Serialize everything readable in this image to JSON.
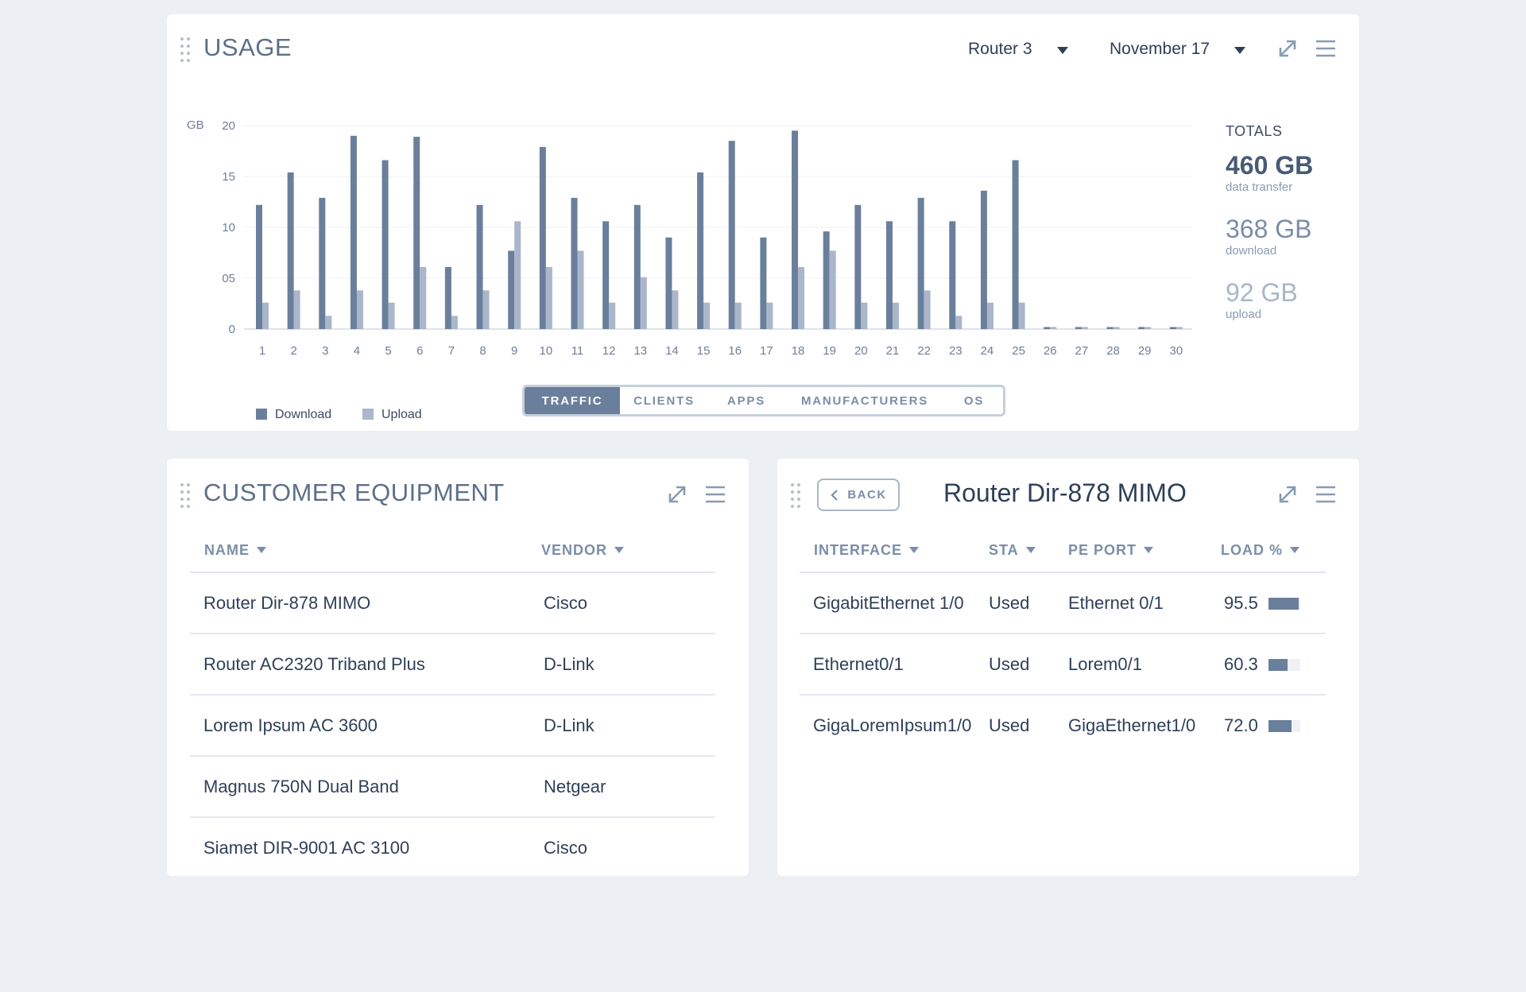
{
  "usage": {
    "title": "USAGE",
    "router_select": "Router 3",
    "date_select": "November 17",
    "unit_label": "GB",
    "totals": {
      "label": "TOTALS",
      "total_value": "460 GB",
      "total_caption": "data transfer",
      "download_value": "368 GB",
      "download_caption": "download",
      "upload_value": "92 GB",
      "upload_caption": "upload"
    },
    "legend": {
      "download": "Download",
      "upload": "Upload"
    },
    "tabs": [
      {
        "label": "TRAFFIC",
        "active": true
      },
      {
        "label": "CLIENTS",
        "active": false
      },
      {
        "label": "APPS",
        "active": false
      },
      {
        "label": "MANUFACTURERS",
        "active": false
      },
      {
        "label": "OS",
        "active": false
      }
    ]
  },
  "chart_data": {
    "type": "bar",
    "ylabel": "GB",
    "ylim": [
      0,
      20
    ],
    "yticks": [
      "0",
      "05",
      "10",
      "15",
      "20"
    ],
    "ytick_values": [
      0,
      5,
      10,
      15,
      20
    ],
    "grid": true,
    "legend_position": "bottom-left",
    "categories": [
      "1",
      "2",
      "3",
      "4",
      "5",
      "6",
      "7",
      "8",
      "9",
      "10",
      "11",
      "12",
      "13",
      "14",
      "15",
      "16",
      "17",
      "18",
      "19",
      "20",
      "21",
      "22",
      "23",
      "24",
      "25",
      "26",
      "27",
      "28",
      "29",
      "30"
    ],
    "series": [
      {
        "name": "Download",
        "color": "#6a7f9b",
        "values": [
          12.2,
          15.4,
          12.9,
          19.0,
          16.6,
          18.9,
          6.1,
          12.2,
          7.7,
          17.9,
          12.9,
          10.6,
          12.2,
          9.0,
          15.4,
          18.5,
          9.0,
          19.5,
          9.6,
          12.2,
          10.6,
          12.9,
          10.6,
          13.6,
          16.6,
          0.2,
          0.2,
          0.2,
          0.2,
          0.2
        ]
      },
      {
        "name": "Upload",
        "color": "#a9b6cb",
        "values": [
          2.6,
          3.8,
          1.3,
          3.8,
          2.6,
          6.1,
          1.3,
          3.8,
          10.6,
          6.1,
          7.7,
          2.6,
          5.1,
          3.8,
          2.6,
          2.6,
          2.6,
          6.1,
          7.7,
          2.6,
          2.6,
          3.8,
          1.3,
          2.6,
          2.6,
          0.2,
          0.2,
          0.2,
          0.2,
          0.2
        ]
      }
    ]
  },
  "equipment": {
    "title": "CUSTOMER EQUIPMENT",
    "columns": {
      "name": "NAME",
      "vendor": "VENDOR"
    },
    "rows": [
      {
        "name": "Router Dir-878 MIMO",
        "vendor": "Cisco"
      },
      {
        "name": "Router AC2320 Triband Plus",
        "vendor": "D-Link"
      },
      {
        "name": "Lorem Ipsum AC 3600",
        "vendor": "D-Link"
      },
      {
        "name": "Magnus 750N Dual Band",
        "vendor": "Netgear"
      },
      {
        "name": "Siamet DIR-9001 AC 3100",
        "vendor": "Cisco"
      }
    ]
  },
  "router_detail": {
    "back_label": "BACK",
    "title": "Router Dir-878 MIMO",
    "columns": {
      "interface": "INTERFACE",
      "status": "STA",
      "pe_port": "PE PORT",
      "load": "LOAD %"
    },
    "rows": [
      {
        "interface": "GigabitEthernet 1/0",
        "status": "Used",
        "pe_port": "Ethernet 0/1",
        "load": "95.5",
        "load_fraction": 0.955
      },
      {
        "interface": "Ethernet0/1",
        "status": "Used",
        "pe_port": "Lorem0/1",
        "load": "60.3",
        "load_fraction": 0.603
      },
      {
        "interface": "GigaLoremIpsum1/0",
        "status": "Used",
        "pe_port": "GigaEthernet1/0",
        "load": "72.0",
        "load_fraction": 0.72
      }
    ]
  },
  "icons": [
    "drag-handle-icon",
    "caret-down-icon",
    "expand-icon",
    "menu-icon",
    "chevron-left-icon"
  ],
  "colors": {
    "accent": "#6a7f9b",
    "accent_light": "#a9b6cb",
    "background": "#eceff3"
  }
}
